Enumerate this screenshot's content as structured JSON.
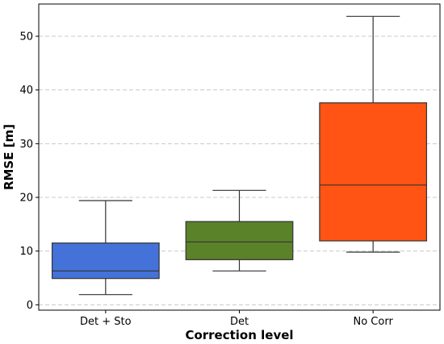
{
  "chart_data": {
    "type": "box",
    "title": "",
    "xlabel": "Correction level",
    "ylabel": "RMSE [m]",
    "ylim": [
      -1,
      56
    ],
    "yticks": [
      0,
      10,
      20,
      30,
      40,
      50
    ],
    "grid": "horizontal dashed",
    "legend": "none",
    "categories": [
      "Det + Sto",
      "Det",
      "No Corr"
    ],
    "boxes": [
      {
        "category": "Det + Sto",
        "whisker_low": 1.9,
        "q1": 4.9,
        "median": 6.3,
        "q3": 11.5,
        "whisker_high": 19.4,
        "color": "#4472d8"
      },
      {
        "category": "Det",
        "whisker_low": 6.3,
        "q1": 8.4,
        "median": 11.7,
        "q3": 15.5,
        "whisker_high": 21.3,
        "color": "#5a8228"
      },
      {
        "category": "No Corr",
        "whisker_low": 9.8,
        "q1": 11.9,
        "median": 22.3,
        "q3": 37.6,
        "whisker_high": 53.7,
        "color": "#ff5414"
      }
    ]
  }
}
